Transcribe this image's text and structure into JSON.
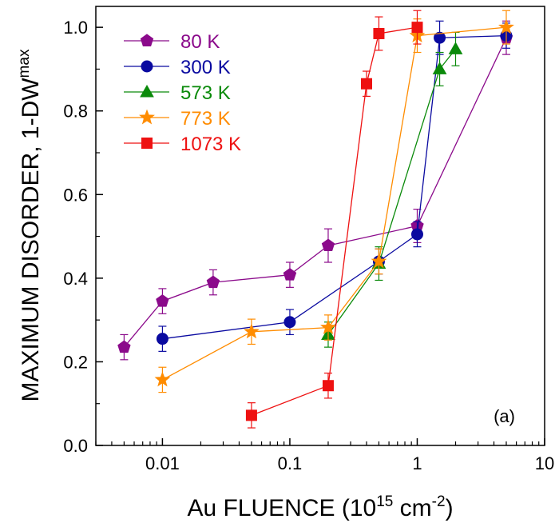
{
  "chart_data": {
    "type": "line",
    "xlabel": {
      "main": "Au FLUENCE (10",
      "sup1": "15",
      "mid": " cm",
      "sup2": "-2",
      "end": ")"
    },
    "ylabel": {
      "main": "MAXIMUM DISORDER, 1-DW",
      "sup": "max"
    },
    "xscale": "log",
    "xlim": [
      0.003,
      10
    ],
    "ylim": [
      0,
      1.05
    ],
    "x_ticks": [
      {
        "value": 0.01,
        "label": "0.01"
      },
      {
        "value": 0.1,
        "label": "0.1"
      },
      {
        "value": 1,
        "label": "1"
      },
      {
        "value": 10,
        "label": "10"
      }
    ],
    "y_ticks": [
      {
        "value": 0.0,
        "label": "0.0"
      },
      {
        "value": 0.2,
        "label": "0.2"
      },
      {
        "value": 0.4,
        "label": "0.4"
      },
      {
        "value": 0.6,
        "label": "0.6"
      },
      {
        "value": 0.8,
        "label": "0.8"
      },
      {
        "value": 1.0,
        "label": "1.0"
      }
    ],
    "annotation": "(a)",
    "legend_position": "top-left",
    "grid": false,
    "series": [
      {
        "name": "80 K",
        "color": "#8b0a8b",
        "marker": "pentagon",
        "x": [
          0.005,
          0.01,
          0.025,
          0.1,
          0.2,
          1,
          5
        ],
        "y": [
          0.235,
          0.345,
          0.39,
          0.408,
          0.478,
          0.525,
          0.975
        ],
        "err": [
          0.03,
          0.03,
          0.03,
          0.03,
          0.04,
          0.04,
          0.04
        ]
      },
      {
        "name": "300 K",
        "color": "#0a0aa0",
        "marker": "circle",
        "x": [
          0.01,
          0.1,
          0.5,
          1,
          1.5,
          5
        ],
        "y": [
          0.255,
          0.295,
          0.44,
          0.505,
          0.975,
          0.98
        ],
        "err": [
          0.03,
          0.03,
          0.03,
          0.03,
          0.04,
          0.03
        ]
      },
      {
        "name": "573 K",
        "color": "#0a8a0a",
        "marker": "triangle",
        "x": [
          0.2,
          0.5,
          1.5,
          2
        ],
        "y": [
          0.265,
          0.435,
          0.9,
          0.948
        ],
        "err": [
          0.03,
          0.04,
          0.04,
          0.04
        ]
      },
      {
        "name": "773 K",
        "color": "#ff8c00",
        "marker": "star",
        "x": [
          0.01,
          0.05,
          0.2,
          0.5,
          1,
          5
        ],
        "y": [
          0.157,
          0.272,
          0.282,
          0.44,
          0.98,
          1.0
        ],
        "err": [
          0.03,
          0.03,
          0.03,
          0.03,
          0.04,
          0.04
        ]
      },
      {
        "name": "1073 K",
        "color": "#ee1111",
        "marker": "square",
        "x": [
          0.05,
          0.2,
          0.4,
          0.5,
          1
        ],
        "y": [
          0.072,
          0.143,
          0.865,
          0.985,
          1.0
        ],
        "err": [
          0.03,
          0.03,
          0.03,
          0.04,
          0.04
        ]
      }
    ]
  }
}
